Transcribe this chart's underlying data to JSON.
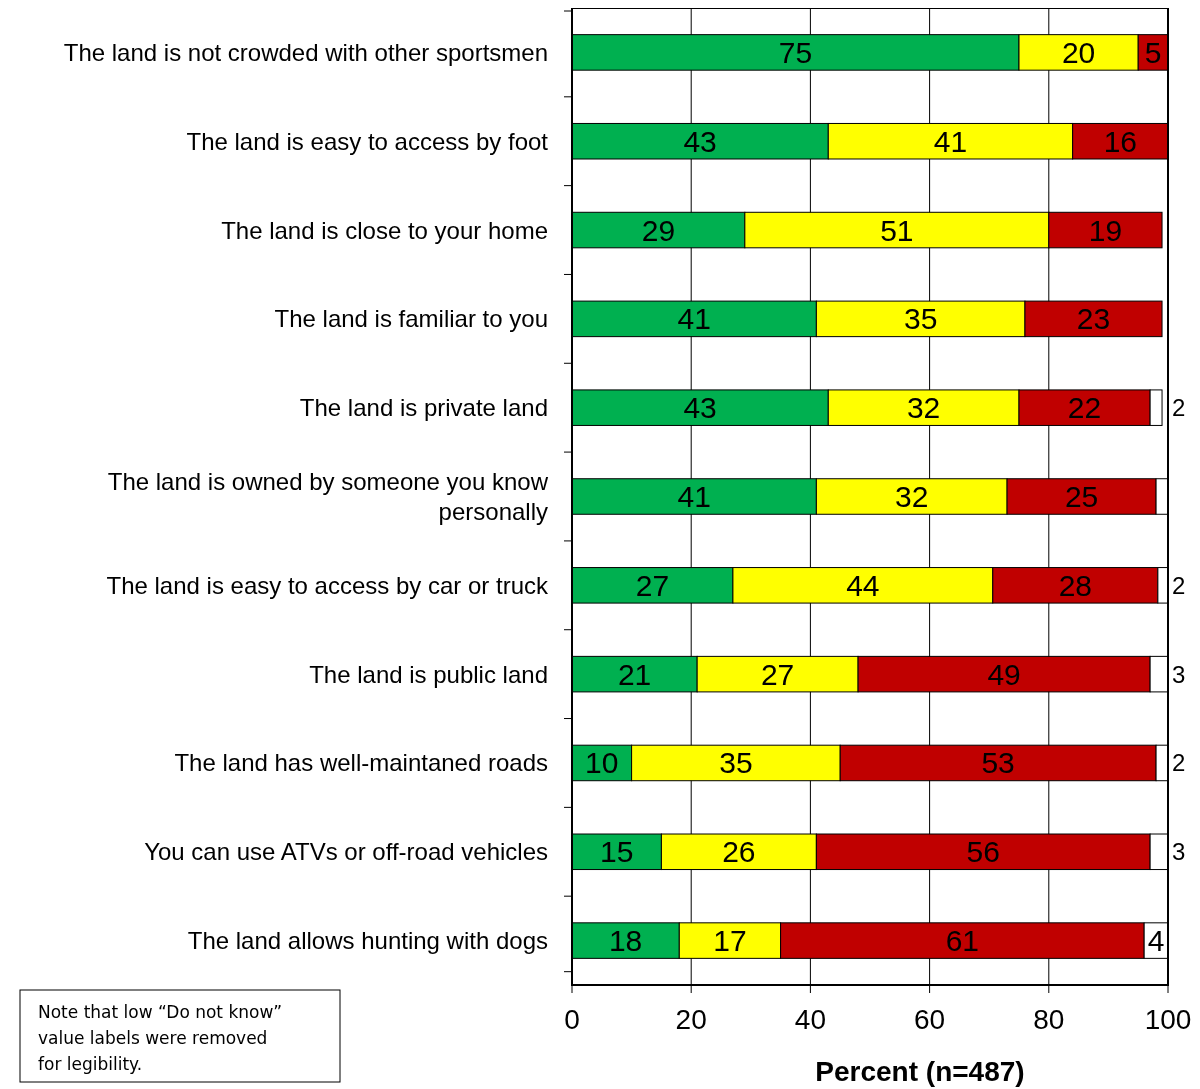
{
  "chart_data": {
    "type": "bar",
    "orientation": "horizontal",
    "stacked": true,
    "xlabel": "Percent (n=487)",
    "categories": [
      "The land is not crowded with other sportsmen",
      "The land is easy to access by foot",
      "The land is close to your home",
      "The land is familiar to you",
      "The land is private land",
      "The land is owned by someone you know personally",
      "The land is easy to access by car or truck",
      "The land is public land",
      "The land has well-maintaned roads",
      "You can use ATVs or off-road vehicles",
      "The land allows hunting with dogs"
    ],
    "series": [
      {
        "color": "#00b050",
        "values": [
          75,
          43,
          29,
          41,
          43,
          41,
          27,
          21,
          10,
          15,
          18
        ],
        "value_labels": [
          "75",
          "43",
          "29",
          "41",
          "43",
          "41",
          "27",
          "21",
          "10",
          "15",
          "18"
        ]
      },
      {
        "color": "#ffff00",
        "values": [
          20,
          41,
          51,
          35,
          32,
          32,
          43.6,
          27,
          35,
          26,
          17
        ],
        "value_labels": [
          "20",
          "41",
          "51",
          "35",
          "32",
          "32",
          "44",
          "27",
          "35",
          "26",
          "17"
        ]
      },
      {
        "color": "#c00000",
        "values": [
          5,
          16,
          19,
          23,
          22,
          25,
          27.7,
          49,
          53,
          56,
          61
        ],
        "value_labels": [
          "5",
          "16",
          "19",
          "23",
          "22",
          "25",
          "28",
          "49",
          "53",
          "56",
          "61"
        ]
      },
      {
        "color": "#ffffff",
        "values": [
          null,
          null,
          null,
          null,
          2,
          2,
          1.7,
          3,
          2,
          3,
          4
        ],
        "value_labels": [
          null,
          null,
          null,
          null,
          "2",
          null,
          "2",
          "3",
          "2",
          "3",
          "4"
        ]
      }
    ],
    "xlim": [
      0,
      100
    ],
    "xticks": [
      0,
      20,
      40,
      60,
      80,
      100
    ],
    "grid": "x",
    "annotations": [
      "Note that low “Do not know” value labels were removed for legibility."
    ]
  }
}
